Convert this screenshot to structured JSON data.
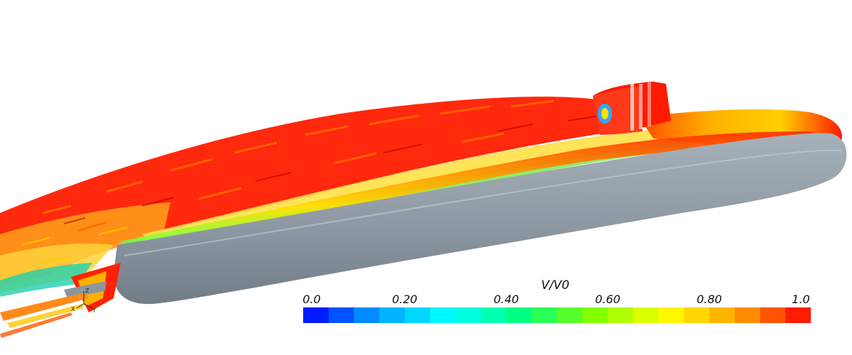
{
  "legend": {
    "title": "V/V0",
    "tick_labels": [
      "0.0",
      "0.20",
      "0.40",
      "0.60",
      "0.80",
      "1.0"
    ],
    "range": [
      0.0,
      1.0
    ],
    "levels": 20,
    "colormap": [
      "#0000ff",
      "#00a0ff",
      "#00ffff",
      "#00ff80",
      "#80ff00",
      "#ffff00",
      "#ffa000",
      "#ff0000"
    ]
  },
  "axes_triad": {
    "labels": [
      "X",
      "Z",
      "Y"
    ]
  },
  "colors": {
    "hull": "#8a96a0",
    "background": "#ffffff"
  }
}
